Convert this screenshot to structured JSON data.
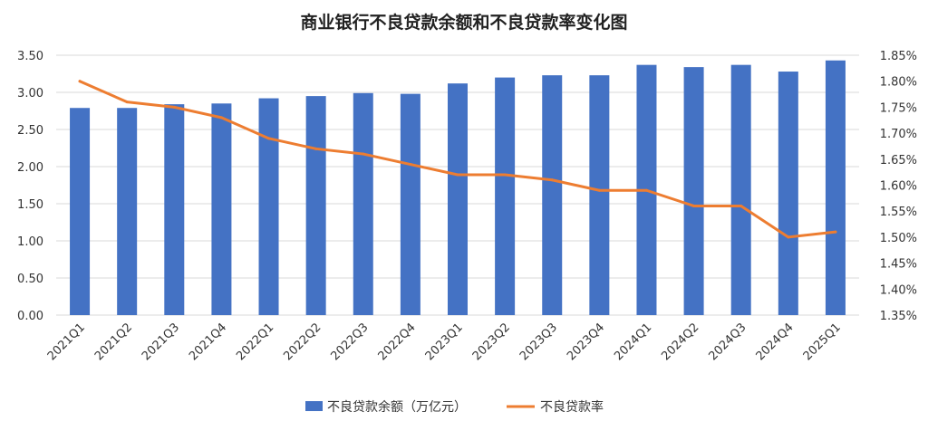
{
  "chart_data": {
    "type": "bar+line",
    "title": "商业银行不良贷款余额和不良贷款率变化图",
    "categories": [
      "2021Q1",
      "2021Q2",
      "2021Q3",
      "2021Q4",
      "2022Q1",
      "2022Q2",
      "2022Q3",
      "2022Q4",
      "2023Q1",
      "2023Q2",
      "2023Q3",
      "2023Q4",
      "2024Q1",
      "2024Q2",
      "2024Q3",
      "2024Q4",
      "2025Q1"
    ],
    "series": [
      {
        "name": "不良贷款余额（万亿元）",
        "type": "bar",
        "axis": "left",
        "color": "#4472C4",
        "values": [
          2.79,
          2.79,
          2.84,
          2.85,
          2.92,
          2.95,
          2.99,
          2.98,
          3.12,
          3.2,
          3.23,
          3.23,
          3.37,
          3.34,
          3.37,
          3.28,
          3.43
        ]
      },
      {
        "name": "不良贷款率",
        "type": "line",
        "axis": "right",
        "color": "#ED7D31",
        "values": [
          1.8,
          1.76,
          1.75,
          1.73,
          1.69,
          1.67,
          1.66,
          1.64,
          1.62,
          1.62,
          1.61,
          1.59,
          1.59,
          1.56,
          1.56,
          1.5,
          1.51
        ]
      }
    ],
    "left_axis": {
      "ylim": [
        0,
        3.5
      ],
      "ticks": [
        "0.00",
        "0.50",
        "1.00",
        "1.50",
        "2.00",
        "2.50",
        "3.00",
        "3.50"
      ]
    },
    "right_axis": {
      "ylim": [
        1.35,
        1.85
      ],
      "ticks": [
        "1.35%",
        "1.40%",
        "1.45%",
        "1.50%",
        "1.55%",
        "1.60%",
        "1.65%",
        "1.70%",
        "1.75%",
        "1.80%",
        "1.85%"
      ]
    },
    "grid": true,
    "legend_position": "bottom"
  }
}
